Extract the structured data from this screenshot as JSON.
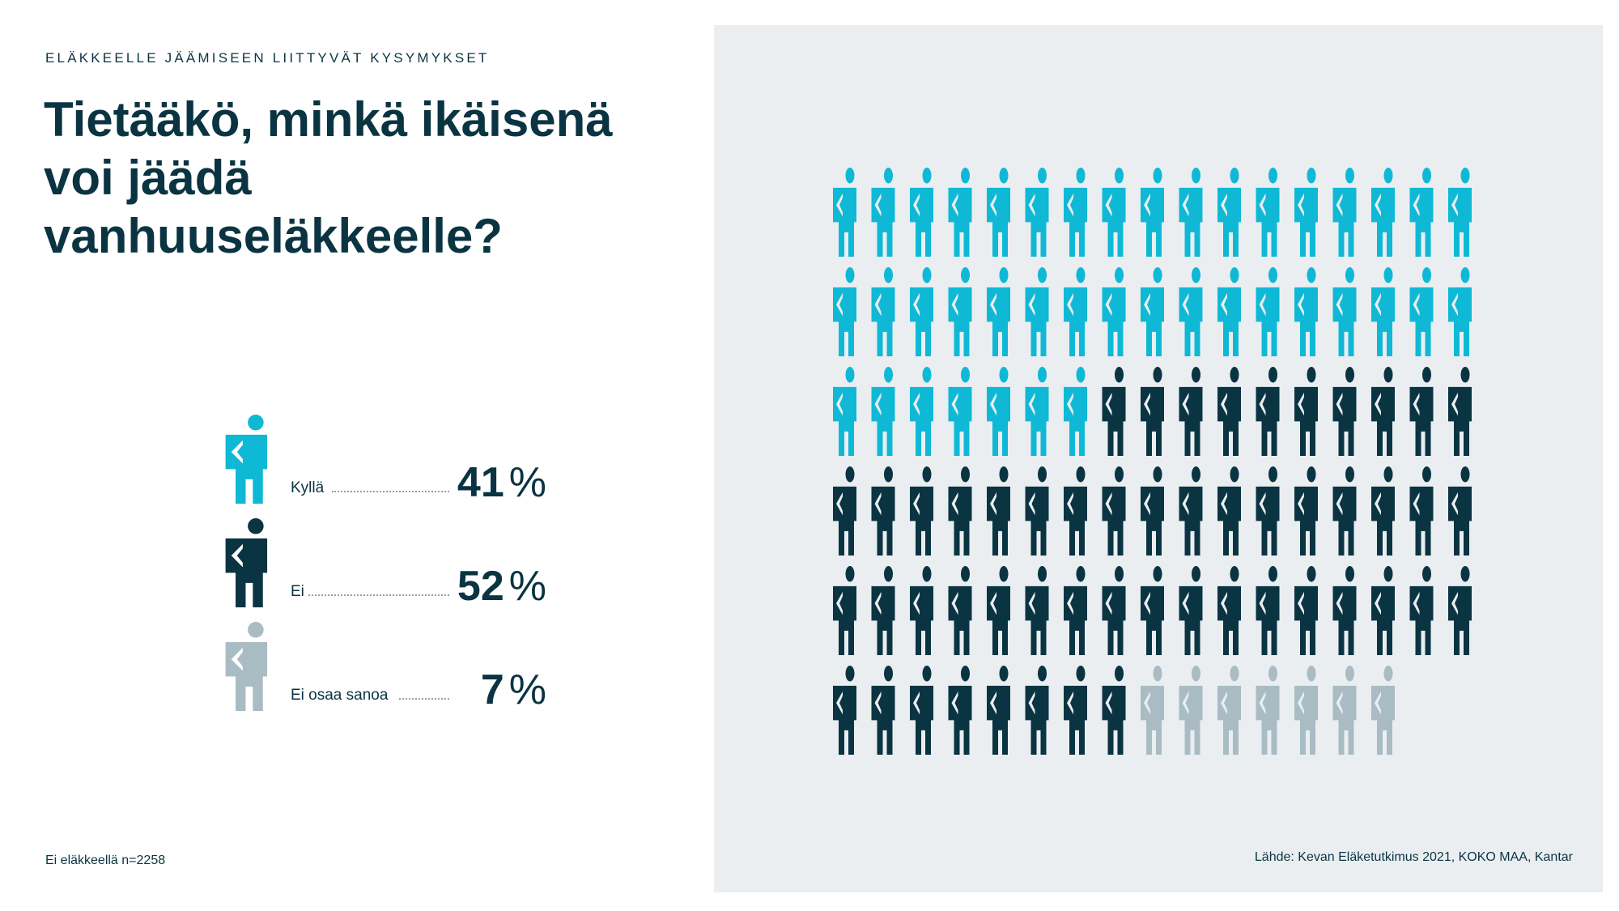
{
  "header": {
    "eyebrow": "ELÄKKEELLE JÄÄMISEEN LIITTYVÄT KYSYMYKSET",
    "title": "Tietääkö, minkä ikäisenä voi jäädä vanhuuseläkkeelle?"
  },
  "legend": [
    {
      "label": "Kyllä",
      "value": "41",
      "unit": "%",
      "color": "#0fb9d6"
    },
    {
      "label": "Ei",
      "value": "52",
      "unit": "%",
      "color": "#0b3442"
    },
    {
      "label": "Ei osaa sanoa",
      "value": "7",
      "unit": "%",
      "color": "#a9bcc3"
    }
  ],
  "footnote": "Ei eläkkeellä n=2258",
  "source": "Lähde: Kevan Eläketutkimus 2021, KOKO MAA, Kantar",
  "chart_data": {
    "type": "pictogram",
    "icons_per_row": 17,
    "total_icons": 100,
    "categories": [
      "Kyllä",
      "Ei",
      "Ei osaa sanoa"
    ],
    "values": [
      41,
      52,
      7
    ],
    "colors": [
      "#0fb9d6",
      "#0b3442",
      "#a9bcc3"
    ]
  }
}
